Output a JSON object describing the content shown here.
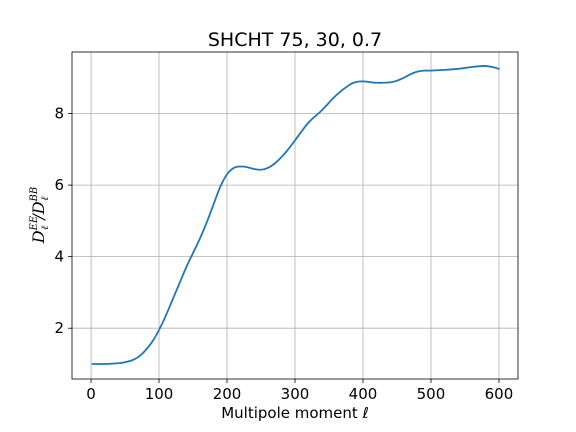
{
  "chart_data": {
    "type": "line",
    "title": "SHCHT 75, 30, 0.7",
    "xlabel": "Multipole moment ℓ",
    "ylabel": {
      "base1": "D",
      "sup1": "EE",
      "sub1": "ℓ",
      "slash": "/",
      "base2": "D",
      "sup2": "BB",
      "sub2": "ℓ"
    },
    "xlim": [
      -28,
      628
    ],
    "ylim": [
      0.58,
      9.72
    ],
    "xticks": [
      0,
      100,
      200,
      300,
      400,
      500,
      600
    ],
    "xtick_labels": [
      "0",
      "100",
      "200",
      "300",
      "400",
      "500",
      "600"
    ],
    "yticks": [
      2,
      4,
      6,
      8
    ],
    "ytick_labels": [
      "2",
      "4",
      "6",
      "8"
    ],
    "grid": true,
    "color": "#1f77b4",
    "series": [
      {
        "x": [
          2,
          20,
          40,
          50,
          60,
          70,
          80,
          90,
          100,
          110,
          120,
          130,
          140,
          150,
          160,
          170,
          180,
          190,
          200,
          210,
          220,
          230,
          240,
          250,
          260,
          270,
          280,
          290,
          300,
          320,
          340,
          360,
          380,
          390,
          400,
          410,
          420,
          440,
          450,
          460,
          470,
          480,
          490,
          500,
          520,
          540,
          560,
          570,
          580,
          590,
          600
        ],
        "y": [
          1.0,
          1.0,
          1.02,
          1.05,
          1.1,
          1.2,
          1.38,
          1.62,
          1.95,
          2.35,
          2.8,
          3.25,
          3.7,
          4.1,
          4.5,
          4.95,
          5.45,
          5.95,
          6.3,
          6.48,
          6.52,
          6.5,
          6.45,
          6.43,
          6.48,
          6.6,
          6.78,
          7.0,
          7.25,
          7.75,
          8.1,
          8.5,
          8.8,
          8.88,
          8.9,
          8.88,
          8.86,
          8.87,
          8.92,
          9.0,
          9.1,
          9.17,
          9.2,
          9.2,
          9.22,
          9.25,
          9.3,
          9.32,
          9.33,
          9.3,
          9.25
        ]
      }
    ]
  }
}
